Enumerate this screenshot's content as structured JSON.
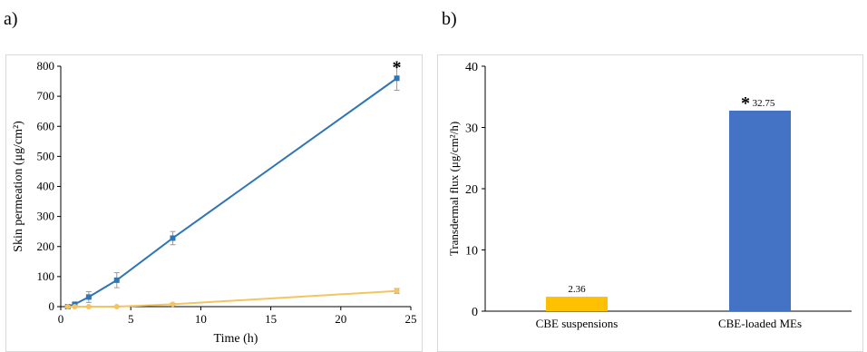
{
  "panels": {
    "a": {
      "label": "a)"
    },
    "b": {
      "label": "b)"
    }
  },
  "chart_data": [
    {
      "type": "line",
      "xlabel": "Time (h)",
      "ylabel": "Skin permeation (μg/cm²)",
      "xlim": [
        0,
        25
      ],
      "ylim": [
        0,
        800
      ],
      "x_ticks": [
        0,
        5,
        10,
        15,
        20,
        25
      ],
      "y_ticks": [
        0,
        100,
        200,
        300,
        400,
        500,
        600,
        700,
        800
      ],
      "grid": false,
      "legend": "none",
      "series": [
        {
          "color": "#2e75b6",
          "marker": "square",
          "points": [
            {
              "x": 0.5,
              "y": 0,
              "err": 2
            },
            {
              "x": 1,
              "y": 8,
              "err": 4
            },
            {
              "x": 2,
              "y": 32,
              "err": 18
            },
            {
              "x": 4,
              "y": 88,
              "err": 25
            },
            {
              "x": 8,
              "y": 228,
              "err": 22
            },
            {
              "x": 24,
              "y": 760,
              "err": 40
            }
          ]
        },
        {
          "color": "#f5c462",
          "marker": "circle",
          "points": [
            {
              "x": 0.5,
              "y": 0,
              "err": 1
            },
            {
              "x": 1,
              "y": 0,
              "err": 1
            },
            {
              "x": 2,
              "y": 0,
              "err": 1
            },
            {
              "x": 4,
              "y": 0,
              "err": 1
            },
            {
              "x": 8,
              "y": 8,
              "err": 3
            },
            {
              "x": 24,
              "y": 52,
              "err": 8
            }
          ]
        }
      ],
      "annotations": [
        {
          "text": "*",
          "x": 24,
          "y": 760
        }
      ]
    },
    {
      "type": "bar",
      "xlabel": "",
      "ylabel": "Transdermal flux (μg/cm²/h)",
      "ylim": [
        0,
        40
      ],
      "y_ticks": [
        0,
        10,
        20,
        30,
        40
      ],
      "grid": false,
      "legend": "none",
      "categories": [
        "CBE suspensions",
        "CBE-loaded MEs"
      ],
      "values": [
        2.36,
        32.75
      ],
      "value_labels": [
        "2.36",
        "32.75"
      ],
      "colors": [
        "#ffc000",
        "#4472c4"
      ],
      "annotations": [
        {
          "text": "*",
          "category": "CBE-loaded MEs"
        }
      ]
    }
  ]
}
